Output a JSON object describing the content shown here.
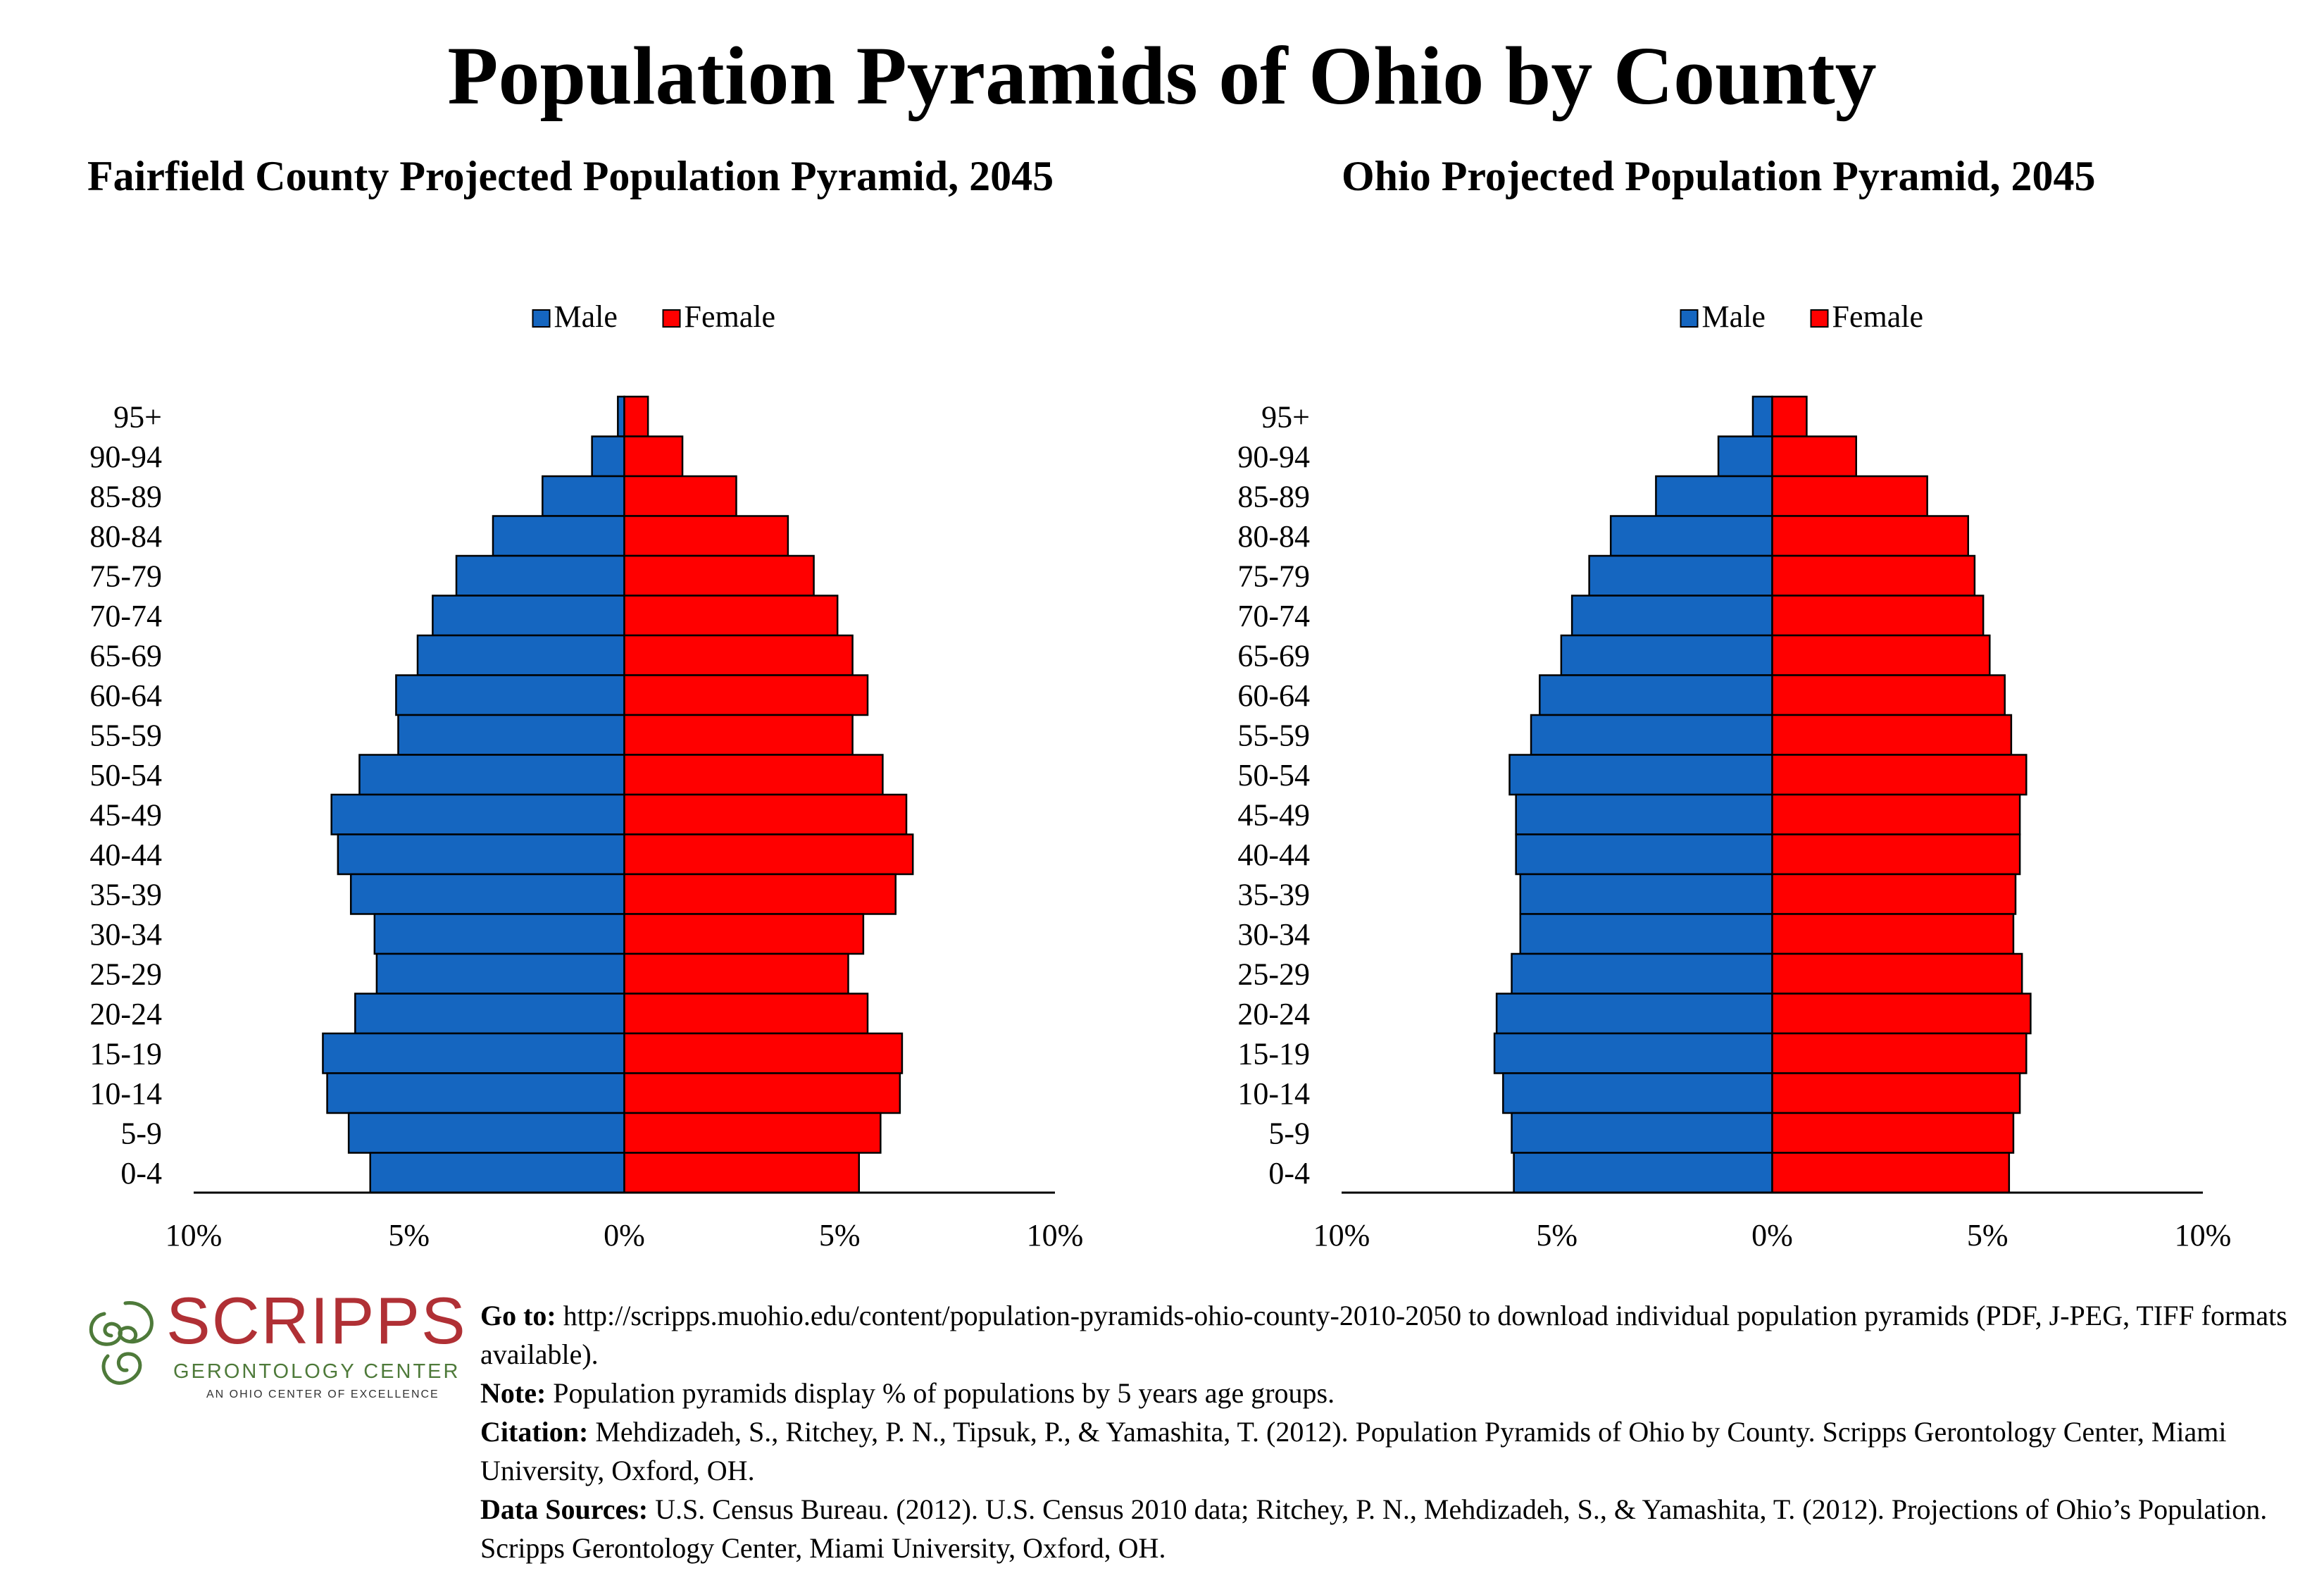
{
  "title": "Population Pyramids of Ohio by County",
  "legend": {
    "male": "Male",
    "female": "Female"
  },
  "colors": {
    "male": "#1566c0",
    "female": "#ff0000"
  },
  "chart_data": [
    {
      "type": "bar",
      "orientation": "horizontal-pyramid",
      "title": "Fairfield County Projected Population Pyramid, 2045",
      "categories": [
        "95+",
        "90-94",
        "85-89",
        "80-84",
        "75-79",
        "70-74",
        "65-69",
        "60-64",
        "55-59",
        "50-54",
        "45-49",
        "40-44",
        "35-39",
        "30-34",
        "25-29",
        "20-24",
        "15-19",
        "10-14",
        "5-9",
        "0-4"
      ],
      "series": [
        {
          "name": "Male",
          "values": [
            0.15,
            0.75,
            1.9,
            3.05,
            3.9,
            4.45,
            4.8,
            5.3,
            5.25,
            6.15,
            6.8,
            6.65,
            6.35,
            5.8,
            5.75,
            6.25,
            7.0,
            6.9,
            6.4,
            5.9
          ]
        },
        {
          "name": "Female",
          "values": [
            0.55,
            1.35,
            2.6,
            3.8,
            4.4,
            4.95,
            5.3,
            5.65,
            5.3,
            6.0,
            6.55,
            6.7,
            6.3,
            5.55,
            5.2,
            5.65,
            6.45,
            6.4,
            5.95,
            5.45
          ]
        }
      ],
      "xlim": [
        -10,
        10
      ],
      "xticks": [
        "10%",
        "5%",
        "0%",
        "5%",
        "10%"
      ],
      "legend_position": "top-center",
      "grid": false
    },
    {
      "type": "bar",
      "orientation": "horizontal-pyramid",
      "title": "Ohio Projected Population Pyramid, 2045",
      "categories": [
        "95+",
        "90-94",
        "85-89",
        "80-84",
        "75-79",
        "70-74",
        "65-69",
        "60-64",
        "55-59",
        "50-54",
        "45-49",
        "40-44",
        "35-39",
        "30-34",
        "25-29",
        "20-24",
        "15-19",
        "10-14",
        "5-9",
        "0-4"
      ],
      "series": [
        {
          "name": "Male",
          "values": [
            0.45,
            1.25,
            2.7,
            3.75,
            4.25,
            4.65,
            4.9,
            5.4,
            5.6,
            6.1,
            5.95,
            5.95,
            5.85,
            5.85,
            6.05,
            6.4,
            6.45,
            6.25,
            6.05,
            6.0
          ]
        },
        {
          "name": "Female",
          "values": [
            0.8,
            1.95,
            3.6,
            4.55,
            4.7,
            4.9,
            5.05,
            5.4,
            5.55,
            5.9,
            5.75,
            5.75,
            5.65,
            5.6,
            5.8,
            6.0,
            5.9,
            5.75,
            5.6,
            5.5
          ]
        }
      ],
      "xlim": [
        -10,
        10
      ],
      "xticks": [
        "10%",
        "5%",
        "0%",
        "5%",
        "10%"
      ],
      "legend_position": "top-center",
      "grid": false
    }
  ],
  "logo": {
    "name": "SCRIPPS",
    "subtitle": "GERONTOLOGY CENTER",
    "tagline": "AN OHIO CENTER OF EXCELLENCE"
  },
  "footer": [
    {
      "label": "Go to:",
      "text": " http://scripps.muohio.edu/content/population-pyramids-ohio-county-2010-2050 to download individual population pyramids (PDF, J-PEG, TIFF formats available)."
    },
    {
      "label": "Note:",
      "text": " Population pyramids display % of populations by 5 years age groups."
    },
    {
      "label": "Citation:",
      "text": " Mehdizadeh, S., Ritchey, P. N., Tipsuk, P., & Yamashita, T. (2012). Population Pyramids of Ohio by County. Scripps Gerontology Center, Miami University, Oxford, OH."
    },
    {
      "label": "Data Sources:",
      "text": " U.S. Census Bureau. (2012). U.S. Census 2010 data; Ritchey, P. N., Mehdizadeh, S., & Yamashita, T. (2012). Projections of Ohio’s Population. Scripps Gerontology Center, Miami University, Oxford, OH."
    }
  ]
}
